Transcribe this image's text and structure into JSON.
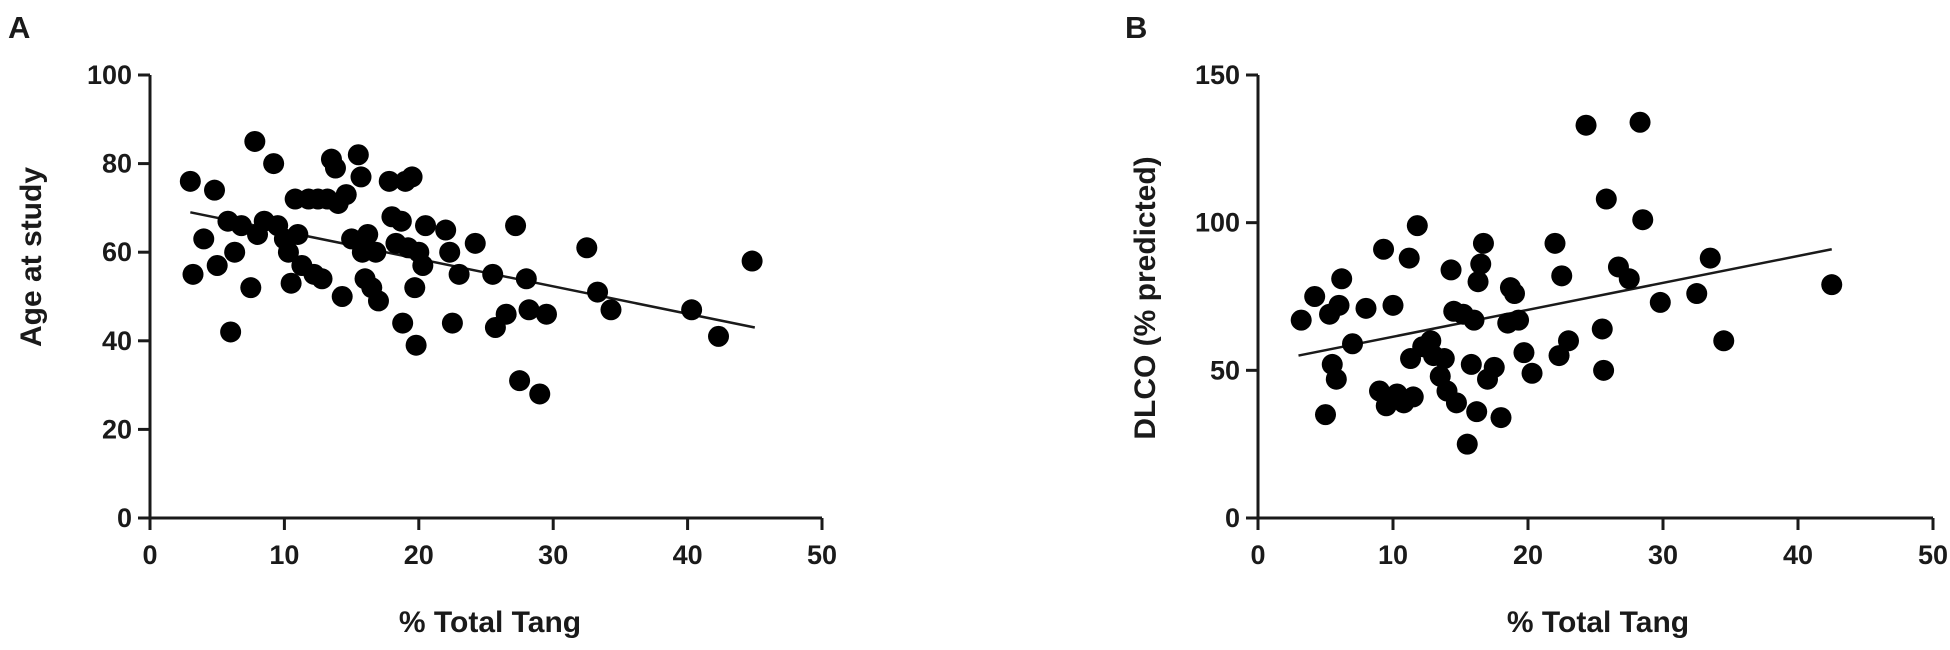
{
  "chart_data": [
    {
      "type": "scatter",
      "panel_label": "A",
      "title": "",
      "xlabel": "% Total Tang",
      "ylabel": "Age at study",
      "xlim": [
        0,
        50
      ],
      "ylim": [
        0,
        100
      ],
      "xticks": [
        "0",
        "10",
        "20",
        "30",
        "40",
        "50"
      ],
      "yticks": [
        "0",
        "20",
        "40",
        "60",
        "80",
        "100"
      ],
      "grid": false,
      "legend": "none",
      "marker_color": "#000000",
      "trendline": {
        "x": [
          3,
          45
        ],
        "y": [
          69,
          43
        ]
      },
      "points": [
        {
          "x": 3.0,
          "y": 76
        },
        {
          "x": 3.2,
          "y": 55
        },
        {
          "x": 4.0,
          "y": 63
        },
        {
          "x": 4.8,
          "y": 74
        },
        {
          "x": 5.0,
          "y": 57
        },
        {
          "x": 5.8,
          "y": 67
        },
        {
          "x": 6.0,
          "y": 42
        },
        {
          "x": 6.3,
          "y": 60
        },
        {
          "x": 6.8,
          "y": 66
        },
        {
          "x": 7.5,
          "y": 52
        },
        {
          "x": 7.8,
          "y": 85
        },
        {
          "x": 8.0,
          "y": 64
        },
        {
          "x": 8.5,
          "y": 67
        },
        {
          "x": 9.2,
          "y": 80
        },
        {
          "x": 9.5,
          "y": 66
        },
        {
          "x": 10.0,
          "y": 63
        },
        {
          "x": 10.3,
          "y": 60
        },
        {
          "x": 10.5,
          "y": 53
        },
        {
          "x": 10.8,
          "y": 72
        },
        {
          "x": 11.0,
          "y": 64
        },
        {
          "x": 11.3,
          "y": 57
        },
        {
          "x": 11.8,
          "y": 72
        },
        {
          "x": 12.2,
          "y": 55
        },
        {
          "x": 12.5,
          "y": 72
        },
        {
          "x": 12.8,
          "y": 54
        },
        {
          "x": 13.2,
          "y": 72
        },
        {
          "x": 13.5,
          "y": 81
        },
        {
          "x": 13.8,
          "y": 79
        },
        {
          "x": 14.0,
          "y": 71
        },
        {
          "x": 14.3,
          "y": 50
        },
        {
          "x": 14.6,
          "y": 73
        },
        {
          "x": 15.0,
          "y": 63
        },
        {
          "x": 15.5,
          "y": 82
        },
        {
          "x": 15.7,
          "y": 77
        },
        {
          "x": 15.8,
          "y": 60
        },
        {
          "x": 16.0,
          "y": 54
        },
        {
          "x": 16.2,
          "y": 64
        },
        {
          "x": 16.5,
          "y": 52
        },
        {
          "x": 16.8,
          "y": 60
        },
        {
          "x": 17.0,
          "y": 49
        },
        {
          "x": 17.8,
          "y": 76
        },
        {
          "x": 18.0,
          "y": 68
        },
        {
          "x": 18.3,
          "y": 62
        },
        {
          "x": 18.7,
          "y": 67
        },
        {
          "x": 18.8,
          "y": 44
        },
        {
          "x": 19.0,
          "y": 76
        },
        {
          "x": 19.2,
          "y": 61
        },
        {
          "x": 19.5,
          "y": 77
        },
        {
          "x": 19.7,
          "y": 52
        },
        {
          "x": 19.8,
          "y": 39
        },
        {
          "x": 20.0,
          "y": 60
        },
        {
          "x": 20.3,
          "y": 57
        },
        {
          "x": 20.5,
          "y": 66
        },
        {
          "x": 22.0,
          "y": 65
        },
        {
          "x": 22.3,
          "y": 60
        },
        {
          "x": 22.5,
          "y": 44
        },
        {
          "x": 23.0,
          "y": 55
        },
        {
          "x": 24.2,
          "y": 62
        },
        {
          "x": 25.5,
          "y": 55
        },
        {
          "x": 25.7,
          "y": 43
        },
        {
          "x": 26.5,
          "y": 46
        },
        {
          "x": 27.2,
          "y": 66
        },
        {
          "x": 27.5,
          "y": 31
        },
        {
          "x": 28.0,
          "y": 54
        },
        {
          "x": 28.2,
          "y": 47
        },
        {
          "x": 29.0,
          "y": 28
        },
        {
          "x": 29.5,
          "y": 46
        },
        {
          "x": 32.5,
          "y": 61
        },
        {
          "x": 33.3,
          "y": 51
        },
        {
          "x": 34.3,
          "y": 47
        },
        {
          "x": 40.3,
          "y": 47
        },
        {
          "x": 42.3,
          "y": 41
        },
        {
          "x": 44.8,
          "y": 58
        }
      ]
    },
    {
      "type": "scatter",
      "panel_label": "B",
      "title": "",
      "xlabel": "% Total Tang",
      "ylabel": "DLCO (% predicted)",
      "xlim": [
        0,
        50
      ],
      "ylim": [
        0,
        150
      ],
      "xticks": [
        "0",
        "10",
        "20",
        "30",
        "40",
        "50"
      ],
      "yticks": [
        "0",
        "50",
        "100",
        "150"
      ],
      "grid": false,
      "legend": "none",
      "marker_color": "#000000",
      "trendline": {
        "x": [
          3,
          42.5
        ],
        "y": [
          55,
          91
        ]
      },
      "points": [
        {
          "x": 3.2,
          "y": 67
        },
        {
          "x": 4.2,
          "y": 75
        },
        {
          "x": 5.0,
          "y": 35
        },
        {
          "x": 5.3,
          "y": 69
        },
        {
          "x": 5.5,
          "y": 52
        },
        {
          "x": 5.8,
          "y": 47
        },
        {
          "x": 6.0,
          "y": 72
        },
        {
          "x": 6.2,
          "y": 81
        },
        {
          "x": 7.0,
          "y": 59
        },
        {
          "x": 8.0,
          "y": 71
        },
        {
          "x": 9.0,
          "y": 43
        },
        {
          "x": 9.3,
          "y": 91
        },
        {
          "x": 9.5,
          "y": 38
        },
        {
          "x": 10.0,
          "y": 72
        },
        {
          "x": 10.3,
          "y": 42
        },
        {
          "x": 10.8,
          "y": 39
        },
        {
          "x": 11.2,
          "y": 88
        },
        {
          "x": 11.3,
          "y": 54
        },
        {
          "x": 11.5,
          "y": 41
        },
        {
          "x": 11.8,
          "y": 99
        },
        {
          "x": 12.2,
          "y": 58
        },
        {
          "x": 12.8,
          "y": 60
        },
        {
          "x": 13.0,
          "y": 55
        },
        {
          "x": 13.5,
          "y": 48
        },
        {
          "x": 13.8,
          "y": 54
        },
        {
          "x": 14.0,
          "y": 43
        },
        {
          "x": 14.3,
          "y": 84
        },
        {
          "x": 14.5,
          "y": 70
        },
        {
          "x": 14.7,
          "y": 39
        },
        {
          "x": 15.2,
          "y": 69
        },
        {
          "x": 15.5,
          "y": 25
        },
        {
          "x": 15.8,
          "y": 52
        },
        {
          "x": 16.0,
          "y": 67
        },
        {
          "x": 16.2,
          "y": 36
        },
        {
          "x": 16.3,
          "y": 80
        },
        {
          "x": 16.5,
          "y": 86
        },
        {
          "x": 16.7,
          "y": 93
        },
        {
          "x": 17.0,
          "y": 47
        },
        {
          "x": 17.5,
          "y": 51
        },
        {
          "x": 18.0,
          "y": 34
        },
        {
          "x": 18.5,
          "y": 66
        },
        {
          "x": 18.7,
          "y": 78
        },
        {
          "x": 19.0,
          "y": 76
        },
        {
          "x": 19.3,
          "y": 67
        },
        {
          "x": 19.7,
          "y": 56
        },
        {
          "x": 20.3,
          "y": 49
        },
        {
          "x": 22.0,
          "y": 93
        },
        {
          "x": 22.3,
          "y": 55
        },
        {
          "x": 22.5,
          "y": 82
        },
        {
          "x": 23.0,
          "y": 60
        },
        {
          "x": 24.3,
          "y": 133
        },
        {
          "x": 25.5,
          "y": 64
        },
        {
          "x": 25.6,
          "y": 50
        },
        {
          "x": 25.8,
          "y": 108
        },
        {
          "x": 26.7,
          "y": 85
        },
        {
          "x": 27.5,
          "y": 81
        },
        {
          "x": 28.3,
          "y": 134
        },
        {
          "x": 28.5,
          "y": 101
        },
        {
          "x": 29.8,
          "y": 73
        },
        {
          "x": 32.5,
          "y": 76
        },
        {
          "x": 33.5,
          "y": 88
        },
        {
          "x": 34.5,
          "y": 60
        },
        {
          "x": 42.5,
          "y": 79
        }
      ]
    }
  ]
}
